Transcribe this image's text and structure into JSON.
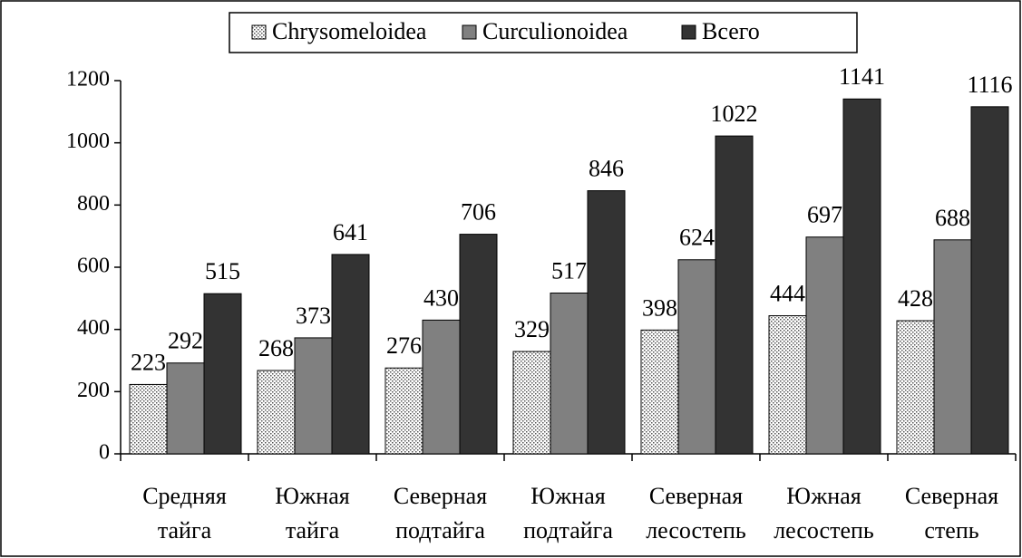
{
  "chart_data": {
    "type": "bar",
    "categories": [
      "Средняя тайга",
      "Южная тайга",
      "Северная подтайга",
      "Южная подтайга",
      "Северная лесостепь",
      "Южная лесостепь",
      "Северная степь"
    ],
    "series": [
      {
        "name": "Chrysomeloidea",
        "color": "#ffffff",
        "pattern": "dots",
        "values": [
          223,
          268,
          276,
          329,
          398,
          444,
          428
        ]
      },
      {
        "name": "Curculionoidea",
        "color": "#808080",
        "values": [
          292,
          373,
          430,
          517,
          624,
          697,
          688
        ]
      },
      {
        "name": "Всего",
        "color": "#333333",
        "values": [
          515,
          641,
          706,
          846,
          1022,
          1141,
          1116
        ]
      }
    ],
    "ylim": [
      0,
      1200
    ],
    "yticks": [
      0,
      200,
      400,
      600,
      800,
      1000,
      1200
    ],
    "legend": "top",
    "data_labels": true
  }
}
